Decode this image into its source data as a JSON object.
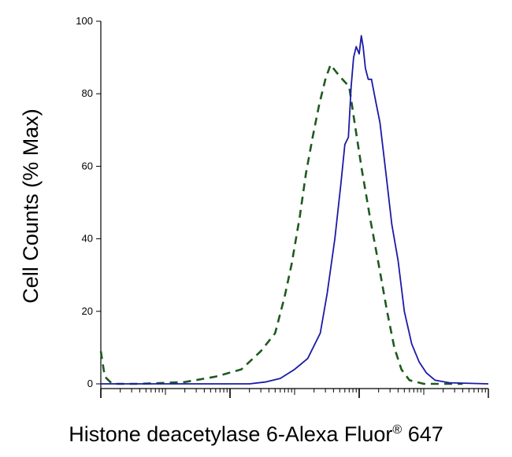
{
  "chart_data": {
    "type": "line",
    "title": "",
    "xlabel": "Histone deacetylase 6-Alexa Fluor",
    "xlabel_superscript": "®",
    "xlabel_suffix": " 647",
    "ylabel": "Cell Counts (% Max)",
    "x_scale": "log",
    "x_range": [
      1,
      1000000
    ],
    "ylim": [
      0,
      100
    ],
    "y_ticks": [
      0,
      20,
      40,
      60,
      80,
      100
    ],
    "y_tick_labels": [
      "0",
      "20",
      "40",
      "60",
      "80",
      "100"
    ],
    "x_major_ticks": [
      1,
      100,
      10000,
      1000000
    ],
    "grid": false,
    "legend": "none",
    "colors": {
      "solid": "#1a1aa8",
      "dashed": "#1f5a1f"
    },
    "series": [
      {
        "style": "dashed",
        "color": "#1f5a1f",
        "points": [
          [
            1.0,
            9
          ],
          [
            1.15,
            2
          ],
          [
            1.5,
            0
          ],
          [
            4,
            0
          ],
          [
            20,
            0.5
          ],
          [
            60,
            2
          ],
          [
            150,
            4
          ],
          [
            300,
            9
          ],
          [
            500,
            14
          ],
          [
            700,
            24
          ],
          [
            900,
            33
          ],
          [
            1200,
            46
          ],
          [
            1500,
            58
          ],
          [
            1900,
            68
          ],
          [
            2400,
            77
          ],
          [
            3000,
            84
          ],
          [
            3600,
            88
          ],
          [
            4400,
            86
          ],
          [
            5500,
            84
          ],
          [
            7000,
            82
          ],
          [
            8500,
            72
          ],
          [
            11000,
            59
          ],
          [
            15000,
            45
          ],
          [
            20000,
            33
          ],
          [
            27000,
            20
          ],
          [
            35000,
            10
          ],
          [
            45000,
            4
          ],
          [
            60000,
            1
          ],
          [
            100000,
            0
          ],
          [
            400000,
            0
          ]
        ]
      },
      {
        "style": "solid",
        "color": "#1a1aa8",
        "points": [
          [
            1,
            0
          ],
          [
            200,
            0
          ],
          [
            350,
            0.5
          ],
          [
            600,
            1.5
          ],
          [
            1000,
            4
          ],
          [
            1600,
            7
          ],
          [
            2500,
            14
          ],
          [
            3200,
            25
          ],
          [
            4200,
            40
          ],
          [
            5200,
            55
          ],
          [
            6000,
            66
          ],
          [
            6800,
            68
          ],
          [
            7500,
            82
          ],
          [
            8200,
            90
          ],
          [
            9000,
            93
          ],
          [
            10000,
            91
          ],
          [
            10800,
            96
          ],
          [
            11500,
            93
          ],
          [
            12500,
            87
          ],
          [
            13800,
            84
          ],
          [
            15500,
            84
          ],
          [
            18000,
            78
          ],
          [
            21000,
            72
          ],
          [
            26000,
            58
          ],
          [
            32000,
            44
          ],
          [
            40000,
            34
          ],
          [
            50000,
            20
          ],
          [
            65000,
            11
          ],
          [
            85000,
            6
          ],
          [
            110000,
            3
          ],
          [
            150000,
            1
          ],
          [
            250000,
            0.3
          ],
          [
            1000000,
            0
          ]
        ]
      }
    ]
  }
}
